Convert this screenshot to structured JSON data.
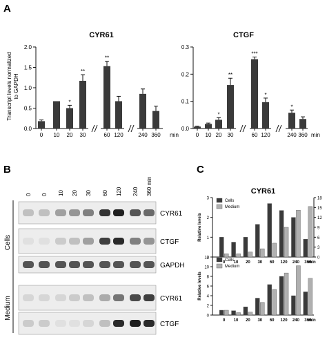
{
  "panels": {
    "a_letter": "A",
    "b_letter": "B",
    "c_letter": "C"
  },
  "panel_a": {
    "ylabel_line1": "Transcript levels normalized",
    "ylabel_line2": "to GAPDH",
    "unit": "min"
  },
  "panel_b": {
    "lane_labels": [
      "0",
      "0",
      "10",
      "20",
      "30",
      "60",
      "120",
      "240",
      "360 min"
    ],
    "group_cells": "Cells",
    "group_medium": "Medium",
    "rows": [
      {
        "label": "CYR61",
        "group": "cells",
        "intensity": [
          0.2,
          0.2,
          0.35,
          0.4,
          0.5,
          0.85,
          0.95,
          0.7,
          0.6
        ]
      },
      {
        "label": "CTGF",
        "group": "cells",
        "intensity": [
          0.05,
          0.05,
          0.15,
          0.2,
          0.35,
          0.8,
          0.9,
          0.5,
          0.4
        ]
      },
      {
        "label": "GAPDH",
        "group": "cells",
        "intensity": [
          0.7,
          0.7,
          0.7,
          0.7,
          0.7,
          0.7,
          0.7,
          0.7,
          0.7
        ]
      },
      {
        "label": "CYR61",
        "group": "medium",
        "intensity": [
          0.1,
          0.1,
          0.1,
          0.15,
          0.2,
          0.3,
          0.55,
          0.75,
          0.8
        ]
      },
      {
        "label": "CTGF",
        "group": "medium",
        "intensity": [
          0.15,
          0.15,
          0.05,
          0.05,
          0.1,
          0.2,
          0.9,
          0.95,
          0.9
        ]
      }
    ]
  },
  "chart_data": [
    {
      "type": "bar",
      "panel": "A",
      "title": "CYR61",
      "categories": [
        "0",
        "10",
        "20",
        "30",
        "60",
        "120",
        "240",
        "360"
      ],
      "values": [
        0.18,
        0.67,
        0.5,
        1.17,
        1.53,
        0.67,
        0.85,
        0.43
      ],
      "errors": [
        0.03,
        0.0,
        0.07,
        0.15,
        0.12,
        0.12,
        0.12,
        0.12
      ],
      "significance": [
        "",
        "",
        "*",
        "**",
        "**",
        "",
        "",
        ""
      ],
      "y_ticks": [
        "0.0",
        "0.5",
        "1.0",
        "1.5",
        "2.0"
      ],
      "ylim": [
        0,
        2.0
      ],
      "axis_breaks_after": [
        "30",
        "120"
      ],
      "color": "#3a3a3a"
    },
    {
      "type": "bar",
      "panel": "A",
      "title": "CTGF",
      "categories": [
        "0",
        "10",
        "20",
        "30",
        "60",
        "120",
        "240",
        "360"
      ],
      "values": [
        0.007,
        0.017,
        0.032,
        0.16,
        0.255,
        0.097,
        0.058,
        0.035
      ],
      "errors": [
        0.002,
        0.003,
        0.008,
        0.025,
        0.008,
        0.015,
        0.01,
        0.008
      ],
      "significance": [
        "",
        "",
        "*",
        "**",
        "***",
        "*",
        "*",
        ""
      ],
      "y_ticks": [
        "0.0",
        "0.1",
        "0.2",
        "0.3"
      ],
      "ylim": [
        0,
        0.3
      ],
      "axis_breaks_after": [
        "30",
        "120"
      ],
      "color": "#3a3a3a"
    },
    {
      "type": "bar",
      "panel": "C-top",
      "title": "CYR61",
      "ylabel": "Relative levels",
      "unit": "min",
      "categories": [
        "0",
        "10",
        "20",
        "30",
        "60",
        "120",
        "240",
        "360"
      ],
      "series": [
        {
          "name": "Cells",
          "axis": "left",
          "color": "#3a3a3a",
          "values": [
            1.0,
            0.75,
            1.0,
            1.65,
            2.7,
            2.35,
            2.0,
            0.9
          ]
        },
        {
          "name": "Medium",
          "axis": "right",
          "color": "#b0b0b0",
          "values": [
            1.0,
            1.0,
            1.5,
            2.5,
            4.2,
            9.0,
            14.2,
            15.3
          ]
        }
      ],
      "y_left_ticks": [
        "0",
        "1",
        "2",
        "3"
      ],
      "ylim_left": [
        0,
        3
      ],
      "y_right_ticks": [
        "0",
        "3",
        "6",
        "9",
        "12",
        "15",
        "18"
      ],
      "ylim_right": [
        0,
        18
      ],
      "legend": "top-left"
    },
    {
      "type": "bar",
      "panel": "C-bottom",
      "ylabel": "Relative levels",
      "unit": "min",
      "categories": [
        "0",
        "10",
        "20",
        "30",
        "60",
        "120",
        "240",
        "360"
      ],
      "series": [
        {
          "name": "Cells",
          "color": "#3a3a3a",
          "values": [
            1.0,
            0.9,
            1.7,
            3.5,
            6.3,
            8.0,
            4.0,
            4.8
          ]
        },
        {
          "name": "Medium",
          "color": "#b0b0b0",
          "values": [
            1.0,
            0.5,
            0.6,
            2.6,
            5.3,
            8.7,
            10.2,
            7.6
          ]
        }
      ],
      "y_ticks": [
        "0",
        "2",
        "4",
        "6",
        "8",
        "10",
        "12"
      ],
      "ylim": [
        0,
        12
      ],
      "legend": "top-left"
    }
  ]
}
